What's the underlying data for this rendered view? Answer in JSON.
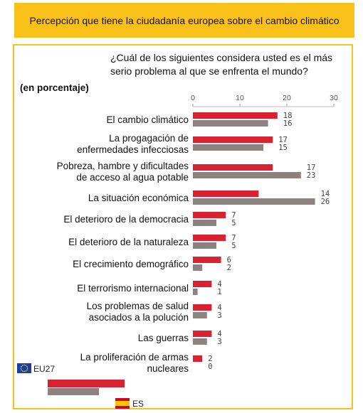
{
  "banner": {
    "title": "Percepción que tiene la ciudadanía europea sobre el cambio climático"
  },
  "question": "¿Cuál de los siguientes considera usted es el más serio problema al que se enfrenta el mundo?",
  "unit_label": "(en porcentaje)",
  "colors": {
    "eu27": "#d92231",
    "es": "#8c8282",
    "banner": "#f9c11a"
  },
  "chart_data": {
    "type": "bar",
    "orientation": "horizontal",
    "xlim": [
      0,
      30
    ],
    "ticks": [
      0,
      10,
      20,
      30
    ],
    "categories": [
      [
        "El cambio climático"
      ],
      [
        "La progagación de",
        "enfermedades infecciosas"
      ],
      [
        "Pobreza, hambre y dificultades",
        "de acceso al agua potable"
      ],
      [
        "La situación económica"
      ],
      [
        "El deterioro de la democracia"
      ],
      [
        "El deterioro de la naturaleza"
      ],
      [
        "El crecimiento demográfico"
      ],
      [
        "El terrorismo internacional"
      ],
      [
        "Los problemas de salud",
        "asociados a la polución"
      ],
      [
        "Las guerras"
      ],
      [
        "La proliferación de armas",
        "nucleares"
      ]
    ],
    "series": [
      {
        "name": "EU27",
        "values": [
          18,
          17,
          17,
          14,
          7,
          7,
          6,
          4,
          4,
          4,
          2
        ]
      },
      {
        "name": "ES",
        "values": [
          16,
          15,
          23,
          26,
          5,
          5,
          2,
          1,
          3,
          3,
          0
        ]
      }
    ]
  },
  "legend": {
    "eu27_label": "EU27",
    "es_label": "ES"
  }
}
